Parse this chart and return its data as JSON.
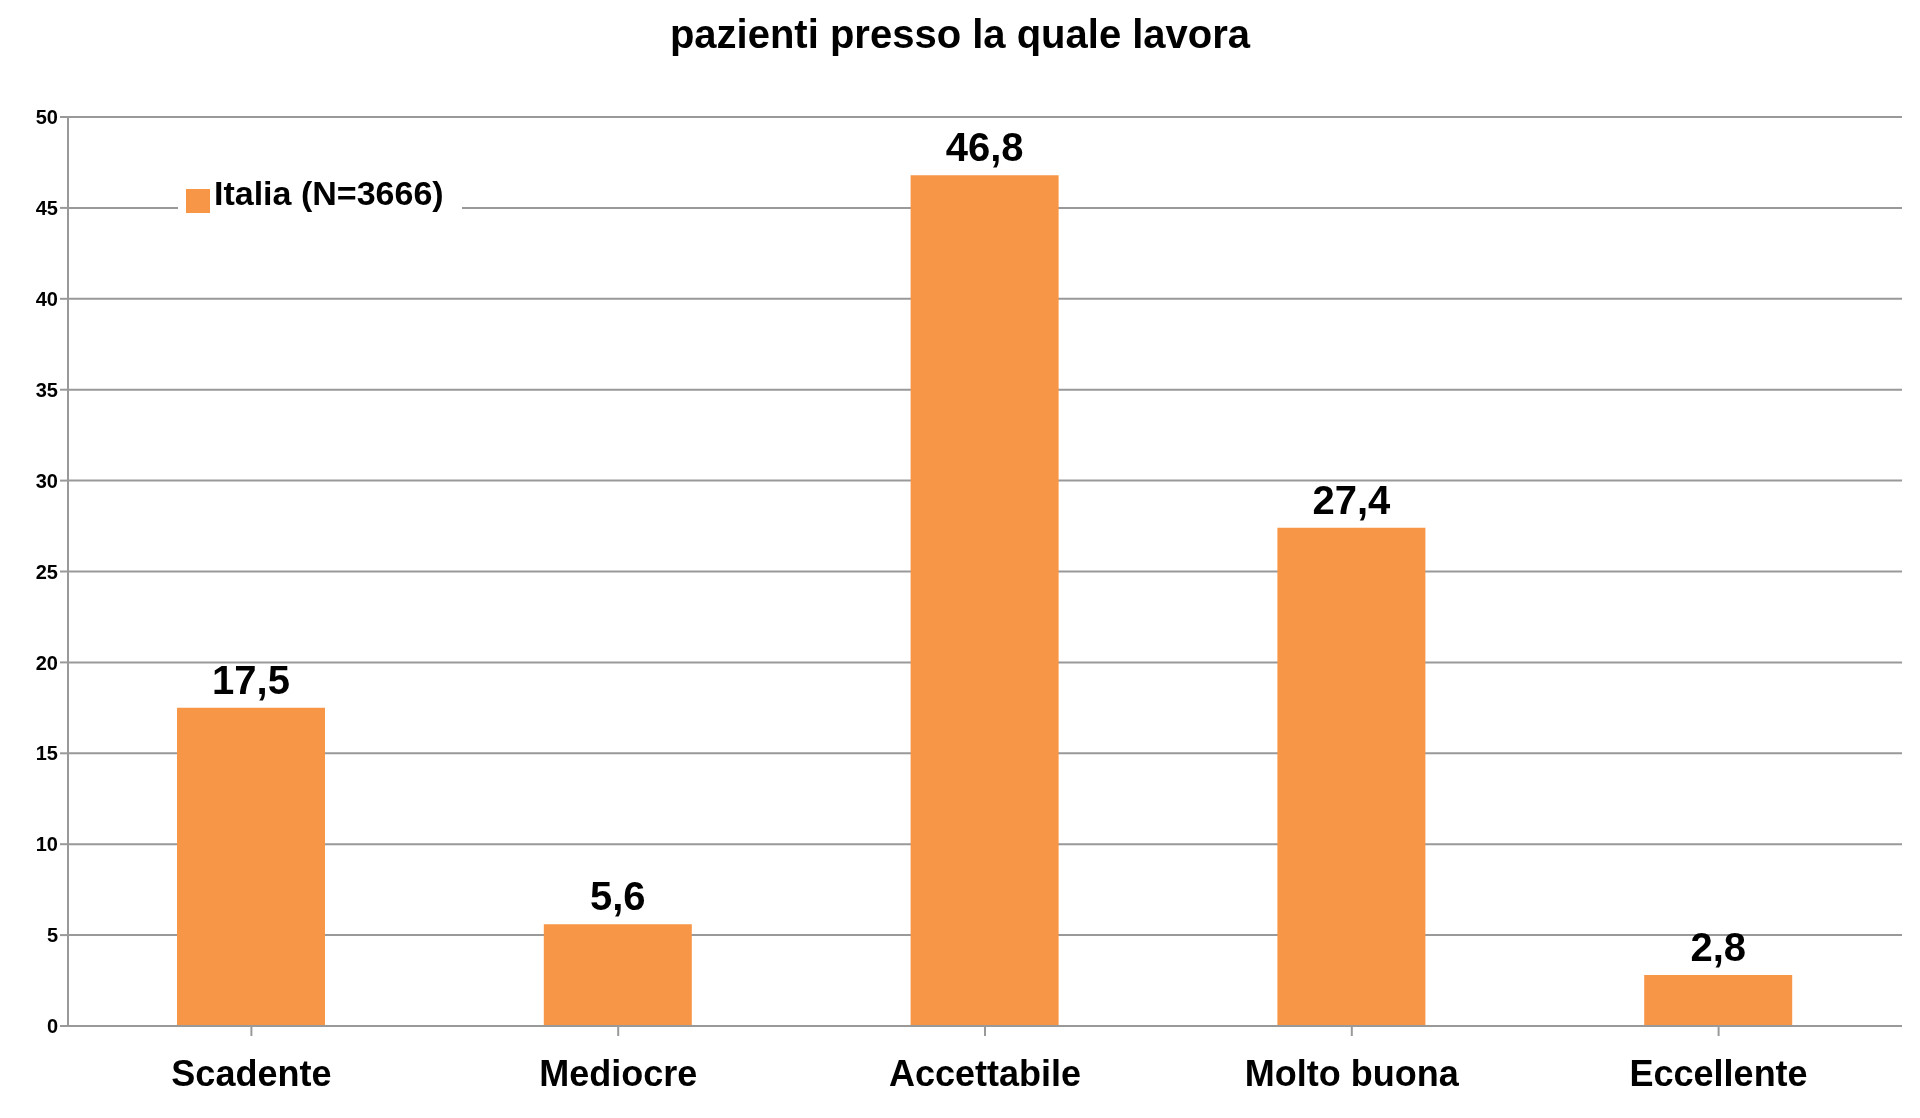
{
  "chart_data": {
    "type": "bar",
    "title": "pazienti presso la quale lavora",
    "categories": [
      "Scadente",
      "Mediocre",
      "Accettabile",
      "Molto buona",
      "Eccellente"
    ],
    "series": [
      {
        "name": "Italia (N=3666)",
        "color": "#f79646",
        "values": [
          17.5,
          5.6,
          46.8,
          27.4,
          2.8
        ]
      }
    ],
    "value_labels": [
      "17,5",
      "5,6",
      "46,8",
      "27,4",
      "2,8"
    ],
    "ylim": [
      0,
      50
    ],
    "yticks": [
      0,
      5,
      10,
      15,
      20,
      25,
      30,
      35,
      40,
      45,
      50
    ],
    "grid": "y",
    "legend": "top left"
  }
}
